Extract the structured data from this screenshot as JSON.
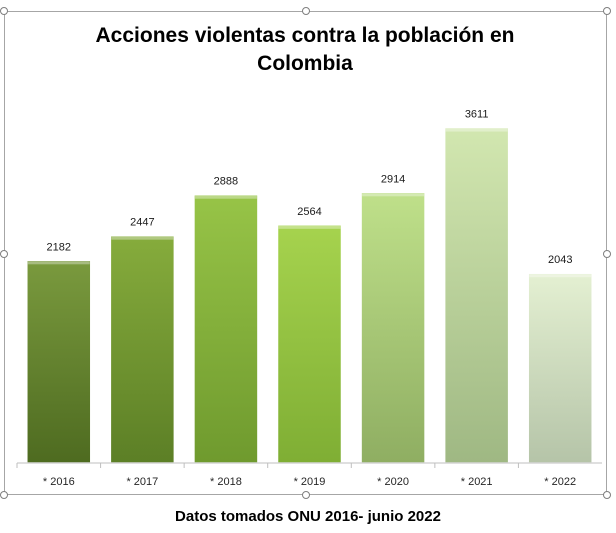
{
  "chart_data": {
    "type": "bar",
    "title": "Acciones violentas contra la población en Colombia",
    "categories": [
      "* 2016",
      "* 2017",
      "* 2018",
      "* 2019",
      "* 2020",
      "* 2021",
      "* 2022"
    ],
    "values": [
      2182,
      2447,
      2888,
      2564,
      2914,
      3611,
      2043
    ],
    "data_labels": [
      "2182",
      "2447",
      "2888",
      "2564",
      "2914",
      "3611",
      "2043"
    ],
    "ylim": [
      0,
      3800
    ],
    "y_axis_visible": false,
    "grid": false,
    "legend": "none",
    "bar_colors": [
      {
        "top": "#7a9a3e",
        "bottom": "#4e6b20"
      },
      {
        "top": "#86ac3c",
        "bottom": "#5c7f26"
      },
      {
        "top": "#97c447",
        "bottom": "#6f9a2e"
      },
      {
        "top": "#a6d34e",
        "bottom": "#7fae34"
      },
      {
        "top": "#bfe08a",
        "bottom": "#8fae62"
      },
      {
        "top": "#d2e7b0",
        "bottom": "#9fb883"
      },
      {
        "top": "#e4f0d2",
        "bottom": "#b5c4a8"
      }
    ]
  },
  "caption": "Datos tomados ONU 2016- junio 2022"
}
